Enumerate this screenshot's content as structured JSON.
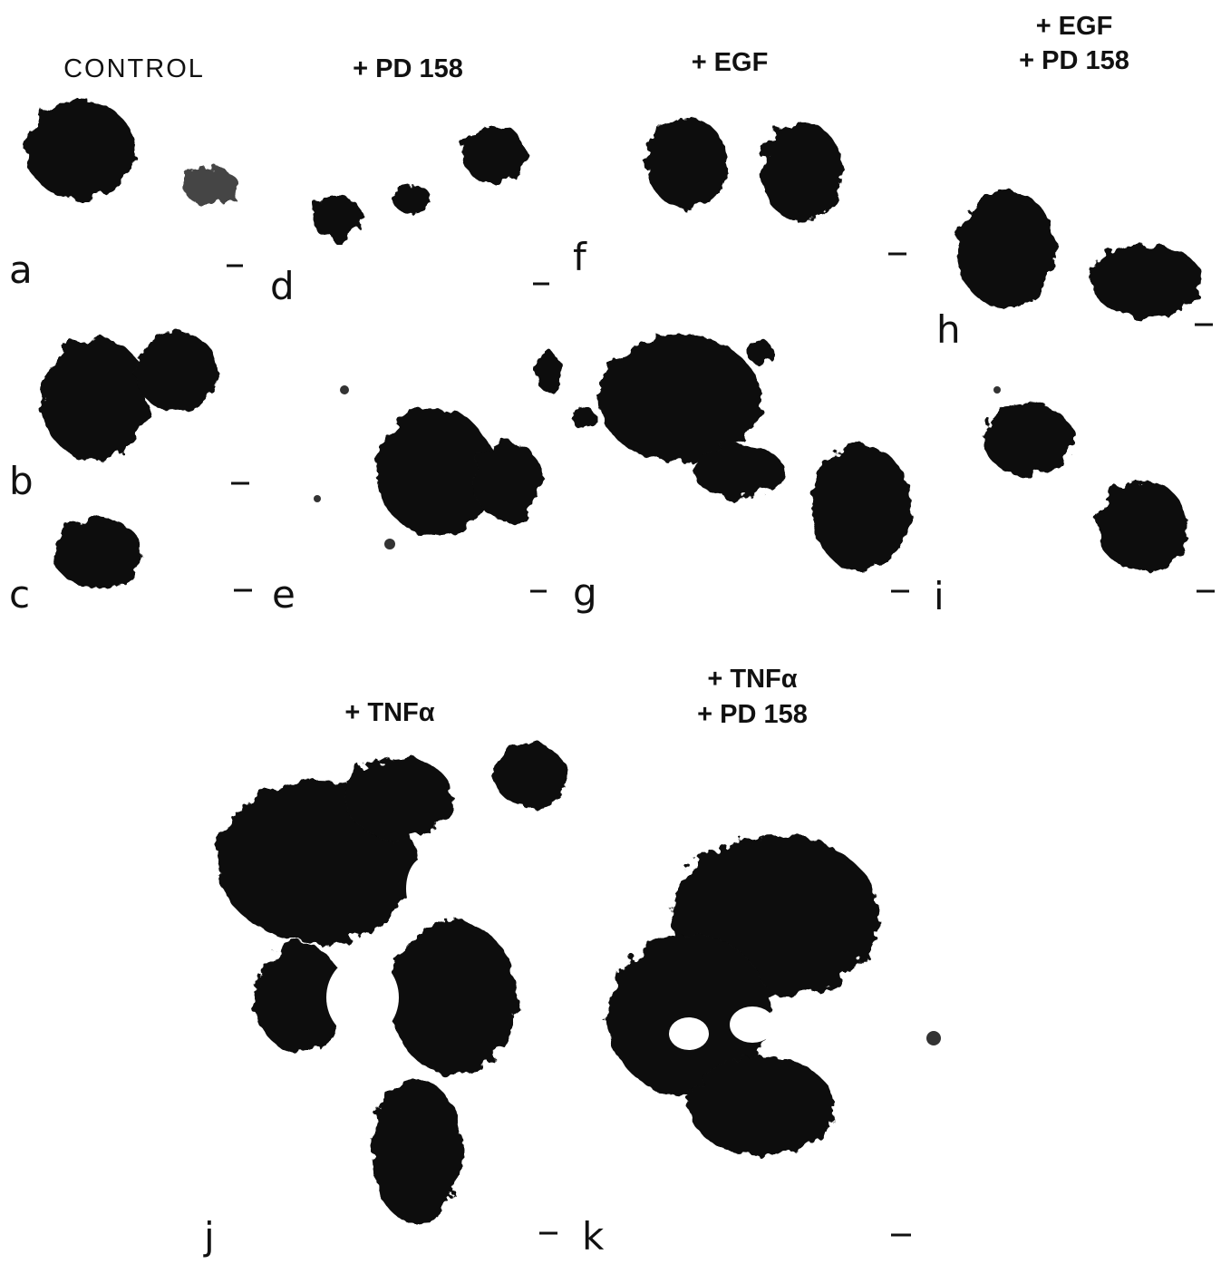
{
  "headers": [
    {
      "lines": [
        "CONTROL"
      ]
    },
    {
      "lines": [
        "+ PD 158"
      ]
    },
    {
      "lines": [
        "+ EGF"
      ]
    },
    {
      "lines": [
        "+ EGF",
        "+ PD 158"
      ]
    },
    {
      "lines": [
        "+ TNFα"
      ]
    },
    {
      "lines": [
        "+ TNFα",
        "+ PD 158"
      ]
    }
  ],
  "panels": [
    "a",
    "b",
    "c",
    "d",
    "e",
    "f",
    "g",
    "h",
    "i",
    "j",
    "k"
  ]
}
